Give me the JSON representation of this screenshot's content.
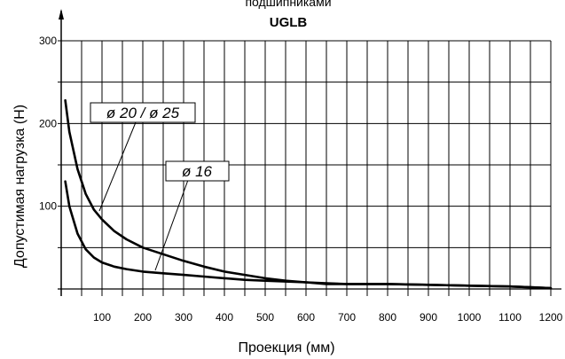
{
  "chart_data": {
    "type": "line",
    "title_line1": "подшипниками",
    "title_line2": "UGLB",
    "xlabel": "Проекция (мм)",
    "ylabel": "Допустимая нагрузка (Н)",
    "xlim": [
      0,
      1200
    ],
    "ylim": [
      0,
      300
    ],
    "grid": true,
    "x_ticks": [
      "100",
      "200",
      "300",
      "400",
      "500",
      "600",
      "700",
      "800",
      "900",
      "1000",
      "1100",
      "1200"
    ],
    "y_ticks": [
      "100",
      "200",
      "300"
    ],
    "series": [
      {
        "name": "ø 20 / ø 25",
        "x": [
          10,
          20,
          40,
          60,
          80,
          100,
          130,
          160,
          200,
          250,
          300,
          350,
          400,
          450,
          500,
          550,
          600,
          650,
          700,
          750,
          800,
          900,
          1000,
          1100,
          1150,
          1200
        ],
        "y": [
          228,
          190,
          145,
          115,
          96,
          84,
          70,
          60,
          50,
          42,
          34,
          27,
          21,
          17,
          13,
          10,
          8,
          6,
          6,
          6,
          6,
          5,
          4,
          3,
          2,
          1
        ]
      },
      {
        "name": "ø 16",
        "x": [
          10,
          20,
          40,
          60,
          80,
          100,
          130,
          160,
          200,
          250,
          300,
          350,
          400,
          450,
          500,
          550,
          600,
          650,
          700,
          750,
          800,
          900,
          1000,
          1100,
          1150,
          1200
        ],
        "y": [
          130,
          100,
          67,
          48,
          38,
          32,
          27,
          24,
          21,
          19,
          17,
          15,
          13,
          11,
          10,
          9,
          8,
          7,
          6,
          6,
          6,
          5,
          4,
          3,
          2,
          1
        ]
      }
    ]
  }
}
